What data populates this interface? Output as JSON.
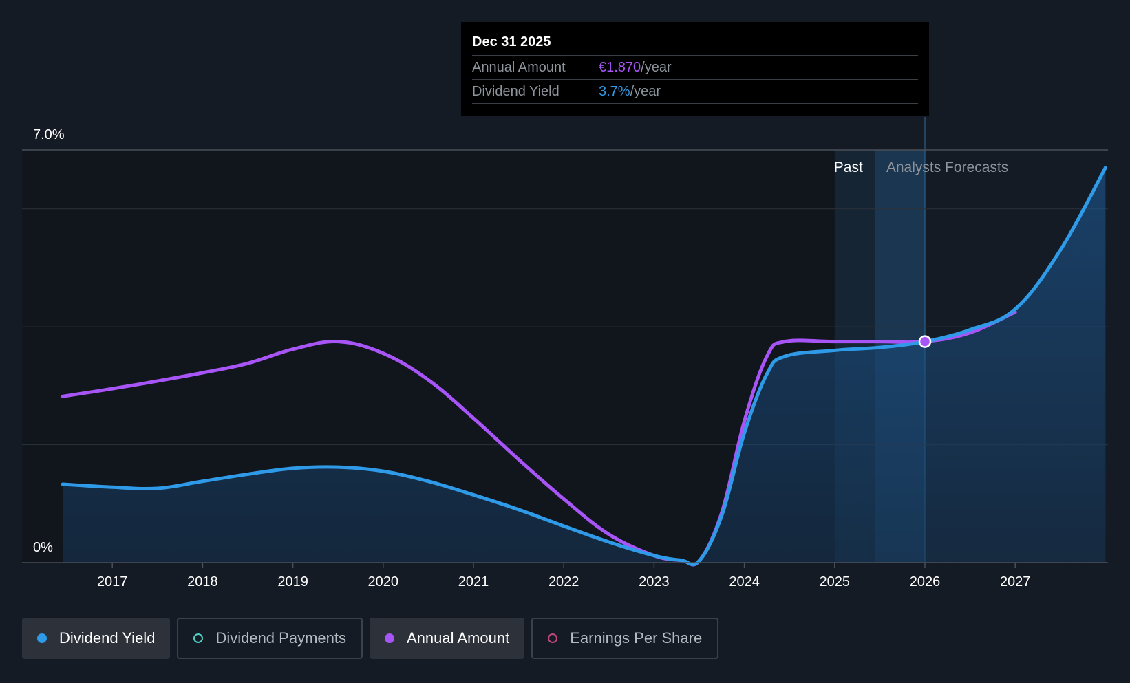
{
  "tooltip": {
    "date": "Dec 31 2025",
    "annual_label": "Annual Amount",
    "annual_value": "€1.870",
    "annual_unit": "/year",
    "yield_label": "Dividend Yield",
    "yield_value": "3.7%",
    "yield_unit": "/year"
  },
  "regions": {
    "past": "Past",
    "forecast": "Analysts Forecasts"
  },
  "legend": [
    {
      "label": "Dividend Yield",
      "color": "#2f9ae8",
      "active": true,
      "filled": true
    },
    {
      "label": "Dividend Payments",
      "color": "#4fd1c5",
      "active": false,
      "filled": false
    },
    {
      "label": "Annual Amount",
      "color": "#a855f7",
      "active": true,
      "filled": true
    },
    {
      "label": "Earnings Per Share",
      "color": "#c2477a",
      "active": false,
      "filled": false
    }
  ],
  "colors": {
    "background": "#151b24",
    "yield": "#2f9ae8",
    "annual": "#a855f7"
  },
  "chart_data": {
    "type": "line",
    "y_tick_labels": [
      "7.0%",
      "0%"
    ],
    "ylim": [
      0,
      7.0
    ],
    "xlim": [
      2016.0,
      2028.0
    ],
    "x_ticks": [
      2017,
      2018,
      2019,
      2020,
      2021,
      2022,
      2023,
      2024,
      2025,
      2026,
      2027
    ],
    "grid": true,
    "series": [
      {
        "name": "Dividend Yield",
        "x": [
          2016.45,
          2017.0,
          2017.5,
          2018.0,
          2018.5,
          2019.0,
          2019.5,
          2020.0,
          2020.5,
          2021.0,
          2021.5,
          2022.0,
          2022.5,
          2023.0,
          2023.3,
          2023.5,
          2023.75,
          2024.0,
          2024.25,
          2024.45,
          2025.0,
          2025.5,
          2026.0,
          2026.5,
          2027.0,
          2027.5,
          2028.0
        ],
        "values": [
          1.33,
          1.28,
          1.26,
          1.38,
          1.5,
          1.6,
          1.62,
          1.55,
          1.38,
          1.15,
          0.9,
          0.62,
          0.35,
          0.12,
          0.04,
          0.03,
          0.8,
          2.2,
          3.2,
          3.5,
          3.6,
          3.65,
          3.75,
          3.95,
          4.3,
          5.3,
          6.7
        ]
      },
      {
        "name": "Annual Amount",
        "x": [
          2016.45,
          2017.0,
          2017.5,
          2018.0,
          2018.5,
          2019.0,
          2019.5,
          2020.0,
          2020.5,
          2021.0,
          2021.5,
          2022.0,
          2022.5,
          2023.0,
          2023.3,
          2023.5,
          2023.75,
          2024.0,
          2024.25,
          2024.45,
          2025.0,
          2025.5,
          2026.0,
          2026.5,
          2027.0
        ],
        "values": [
          2.82,
          2.95,
          3.08,
          3.22,
          3.38,
          3.62,
          3.75,
          3.55,
          3.1,
          2.45,
          1.75,
          1.08,
          0.48,
          0.12,
          0.04,
          0.03,
          0.85,
          2.4,
          3.5,
          3.75,
          3.75,
          3.75,
          3.75,
          3.9,
          4.25
        ]
      }
    ],
    "highlight": {
      "x": 2026.0,
      "value": 3.75
    },
    "past_start": 2025.0,
    "forecast_start": 2025.45
  }
}
